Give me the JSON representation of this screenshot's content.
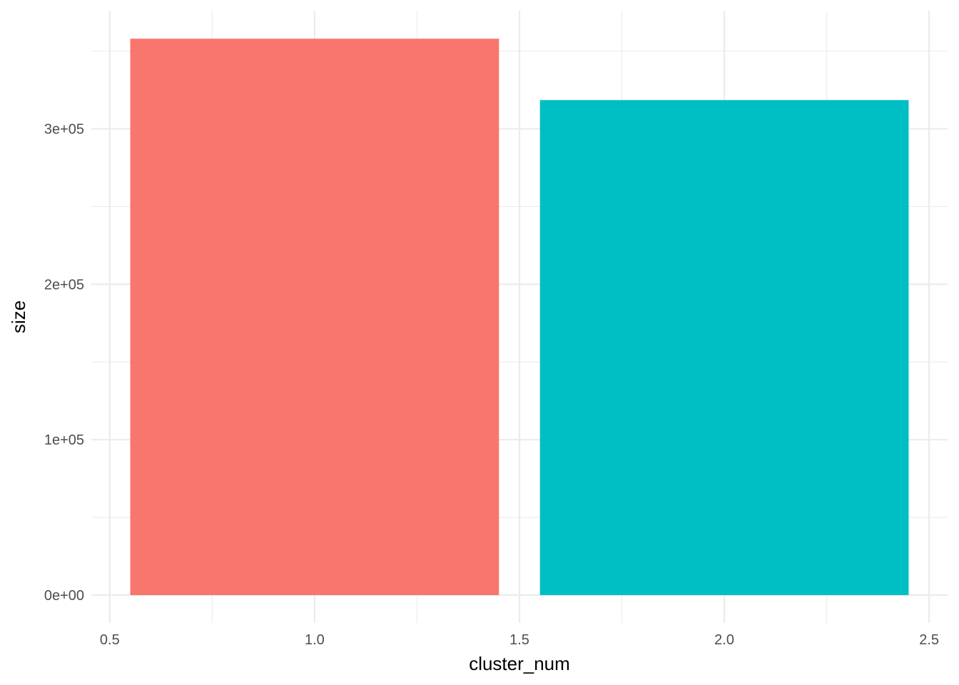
{
  "chart_data": {
    "type": "bar",
    "title": "",
    "xlabel": "cluster_num",
    "ylabel": "size",
    "x_ticks": [
      0.5,
      1.0,
      1.5,
      2.0,
      2.5
    ],
    "x_tick_labels": [
      "0.5",
      "1.0",
      "1.5",
      "2.0",
      "2.5"
    ],
    "y_ticks": [
      0,
      100000,
      200000,
      300000
    ],
    "y_tick_labels": [
      "0e+00",
      "1e+05",
      "2e+05",
      "3e+05"
    ],
    "xlim": [
      0.455,
      2.545
    ],
    "ylim": [
      -17900,
      376000
    ],
    "bar_width": 0.9,
    "bars": [
      {
        "x": 1,
        "value": 358000,
        "color": "#F8766D"
      },
      {
        "x": 2,
        "value": 318500,
        "color": "#00BFC4"
      }
    ],
    "grid": true,
    "legend": "none"
  }
}
